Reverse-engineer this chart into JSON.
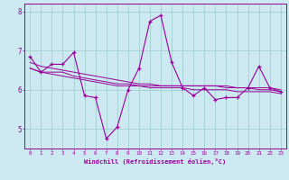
{
  "xlabel": "Windchill (Refroidissement éolien,°C)",
  "background_color": "#cce8f0",
  "line_color": "#990099",
  "grid_color": "#99cccc",
  "x_values": [
    0,
    1,
    2,
    3,
    4,
    5,
    6,
    7,
    8,
    9,
    10,
    11,
    12,
    13,
    14,
    15,
    16,
    17,
    18,
    19,
    20,
    21,
    22,
    23
  ],
  "main_y": [
    6.85,
    6.45,
    6.65,
    6.65,
    6.95,
    5.85,
    5.8,
    4.75,
    5.05,
    6.0,
    6.55,
    7.75,
    7.9,
    6.7,
    6.05,
    5.85,
    6.05,
    5.75,
    5.8,
    5.8,
    6.05,
    6.6,
    6.05,
    5.95
  ],
  "line2_y": [
    6.55,
    6.45,
    6.45,
    6.45,
    6.35,
    6.3,
    6.25,
    6.2,
    6.15,
    6.15,
    6.1,
    6.1,
    6.1,
    6.1,
    6.1,
    6.1,
    6.1,
    6.1,
    6.1,
    6.05,
    6.05,
    6.05,
    6.05,
    6.0
  ],
  "line3_y": [
    6.7,
    6.6,
    6.55,
    6.5,
    6.45,
    6.4,
    6.35,
    6.3,
    6.25,
    6.2,
    6.15,
    6.15,
    6.1,
    6.1,
    6.1,
    6.1,
    6.1,
    6.1,
    6.05,
    6.05,
    6.05,
    6.0,
    6.0,
    5.95
  ],
  "line4_y": [
    6.55,
    6.45,
    6.4,
    6.35,
    6.3,
    6.25,
    6.2,
    6.15,
    6.1,
    6.1,
    6.1,
    6.05,
    6.05,
    6.05,
    6.05,
    6.0,
    6.0,
    6.0,
    6.0,
    5.95,
    5.95,
    5.95,
    5.95,
    5.9
  ],
  "ylim": [
    4.5,
    8.2
  ],
  "yticks": [
    5,
    6,
    7,
    8
  ],
  "xticks": [
    0,
    1,
    2,
    3,
    4,
    5,
    6,
    7,
    8,
    9,
    10,
    11,
    12,
    13,
    14,
    15,
    16,
    17,
    18,
    19,
    20,
    21,
    22,
    23
  ]
}
